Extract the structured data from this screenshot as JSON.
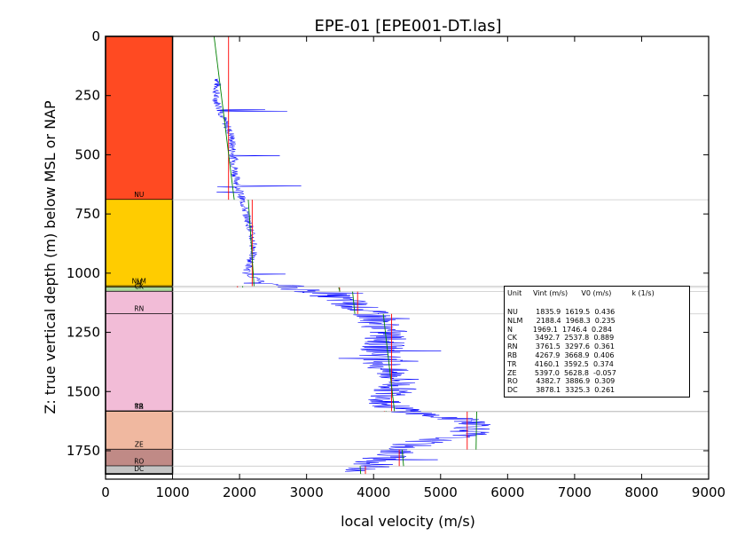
{
  "chart_data": {
    "type": "line",
    "title": "EPE-01 [EPE001-DT.las]",
    "xlabel": "local velocity (m/s)",
    "ylabel": "Z: true vertical depth (m) below MSL or NAP",
    "xlim": [
      0,
      9000
    ],
    "ylim": [
      1870,
      0
    ],
    "y_inverted": true,
    "x_ticks": [
      "0",
      "1000",
      "2000",
      "3000",
      "4000",
      "5000",
      "6000",
      "7000",
      "8000",
      "9000"
    ],
    "y_ticks": [
      "0",
      "250",
      "500",
      "750",
      "1000",
      "1250",
      "1500",
      "1750"
    ],
    "grid": false,
    "units": [
      {
        "name": "NU",
        "top": 0,
        "bottom": 690,
        "color": "#ff4a22",
        "Vint": 1835.9,
        "V0": 1619.5,
        "k": 0.436
      },
      {
        "name": "NLM",
        "top": 690,
        "bottom": 1055,
        "color": "#ffcc00",
        "Vint": 2188.4,
        "V0": 1968.3,
        "k": 0.235
      },
      {
        "name": "N",
        "top": 1055,
        "bottom": 1060,
        "color": "#ffcc00",
        "Vint": 1969.1,
        "V0": 1746.4,
        "k": 0.284
      },
      {
        "name": "CK",
        "top": 1060,
        "bottom": 1078,
        "color": "#a9d79a",
        "Vint": 3492.7,
        "V0": 2537.8,
        "k": 0.889
      },
      {
        "name": "RN",
        "top": 1078,
        "bottom": 1172,
        "color": "#f2bcd7",
        "Vint": 3761.5,
        "V0": 3297.6,
        "k": 0.361
      },
      {
        "name": "RB",
        "top": 1172,
        "bottom": 1583,
        "color": "#f2bcd7",
        "Vint": 4267.9,
        "V0": 3668.9,
        "k": 0.406
      },
      {
        "name": "TR",
        "top": 1583,
        "bottom": 1585,
        "color": "#f0b8a0",
        "Vint": 4160.1,
        "V0": 3592.5,
        "k": 0.374
      },
      {
        "name": "ZE",
        "top": 1585,
        "bottom": 1745,
        "color": "#f0b8a0",
        "Vint": 5397.0,
        "V0": 5628.8,
        "k": -0.057
      },
      {
        "name": "RO",
        "top": 1745,
        "bottom": 1815,
        "color": "#c08a86",
        "Vint": 4382.7,
        "V0": 3886.9,
        "k": 0.309
      },
      {
        "name": "DC",
        "top": 1815,
        "bottom": 1848,
        "color": "#c4c4c4",
        "Vint": 3878.1,
        "V0": 3325.3,
        "k": 0.261
      }
    ],
    "legend": {
      "placement": "right",
      "header": "Unit     Vint (m/s)      V0 (m/s)         k (1/s)",
      "rows": [
        "NU        1835.9  1619.5  0.436",
        "NLM      2188.4  1968.3  0.235",
        "N         1969.1  1746.4  0.284",
        "CK        3492.7  2537.8  0.889",
        "RN        3761.5  3297.6  0.361",
        "RB        4267.9  3668.9  0.406",
        "TR        4160.1  3592.5  0.374",
        "ZE        5397.0  5628.8  -0.057",
        "RO        4382.7  3886.9  0.309",
        "DC        3878.1  3325.3  0.261"
      ]
    },
    "velocity_log_trend": [
      [
        1680,
        180
      ],
      [
        1640,
        260
      ],
      [
        1750,
        340
      ],
      [
        1880,
        420
      ],
      [
        1900,
        500
      ],
      [
        1950,
        600
      ],
      [
        2050,
        700
      ],
      [
        2150,
        800
      ],
      [
        2220,
        900
      ],
      [
        2100,
        1000
      ],
      [
        2350,
        1040
      ],
      [
        2800,
        1060
      ],
      [
        3300,
        1090
      ],
      [
        3600,
        1120
      ],
      [
        4000,
        1180
      ],
      [
        4200,
        1250
      ],
      [
        4100,
        1350
      ],
      [
        4150,
        1400
      ],
      [
        4400,
        1450
      ],
      [
        4300,
        1500
      ],
      [
        4200,
        1560
      ],
      [
        4800,
        1600
      ],
      [
        5600,
        1630
      ],
      [
        5400,
        1680
      ],
      [
        4600,
        1720
      ],
      [
        4300,
        1760
      ],
      [
        4000,
        1800
      ],
      [
        3850,
        1840
      ]
    ],
    "colors": {
      "velocity_log": "#0000ff",
      "interval_velocity": "#ff0000",
      "linear_model": "#008000",
      "boundary_line": "#c8c8c8"
    }
  }
}
